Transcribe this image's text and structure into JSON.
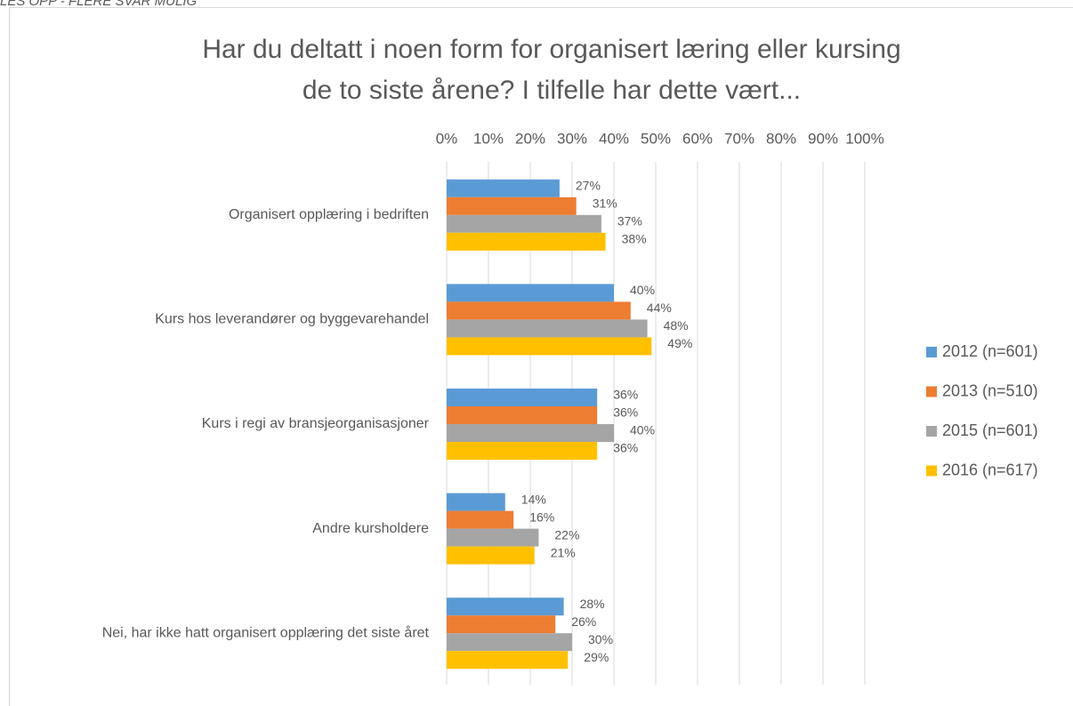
{
  "chart_data": {
    "type": "bar",
    "orientation": "horizontal",
    "note": "LES OPP - FLERE SVAR MULIG",
    "title": "Har du deltatt i noen form for organisert læring eller kursing",
    "subtitle": "de to siste årene? I tilfelle har dette vært...",
    "categories": [
      "Organisert opplæring i bedriften",
      "Kurs hos leverandører og byggevarehandel",
      "Kurs i regi av bransjeorganisasjoner",
      "Andre kursholdere",
      "Nei, har ikke hatt organisert opplæring det siste året"
    ],
    "series": [
      {
        "name": "2012 (n=601)",
        "color": "#5b9bd5",
        "values": [
          27,
          40,
          36,
          14,
          28
        ],
        "value_labels": [
          "27%",
          "40%",
          "36%",
          "14%",
          "28%"
        ]
      },
      {
        "name": "2013 (n=510)",
        "color": "#ed7d31",
        "values": [
          31,
          44,
          36,
          16,
          26
        ],
        "value_labels": [
          "31%",
          "44%",
          "36%",
          "16%",
          "26%"
        ]
      },
      {
        "name": "2015 (n=601)",
        "color": "#a5a5a5",
        "values": [
          37,
          48,
          40,
          22,
          30
        ],
        "value_labels": [
          "37%",
          "48%",
          "40%",
          "22%",
          "30%"
        ]
      },
      {
        "name": "2016 (n=617)",
        "color": "#ffc000",
        "values": [
          38,
          49,
          36,
          21,
          29
        ],
        "value_labels": [
          "38%",
          "49%",
          "36%",
          "21%",
          "29%"
        ]
      }
    ],
    "xlim": [
      0,
      100
    ],
    "xticks": [
      {
        "value": 0,
        "label": "0%"
      },
      {
        "value": 10,
        "label": "10%"
      },
      {
        "value": 20,
        "label": "20%"
      },
      {
        "value": 30,
        "label": "30%"
      },
      {
        "value": 40,
        "label": "40%"
      },
      {
        "value": 50,
        "label": "50%"
      },
      {
        "value": 60,
        "label": "60%"
      },
      {
        "value": 70,
        "label": "70%"
      },
      {
        "value": 80,
        "label": "80%"
      },
      {
        "value": 90,
        "label": "90%"
      },
      {
        "value": 100,
        "label": "100%"
      }
    ],
    "grid": true,
    "legend": "right"
  }
}
